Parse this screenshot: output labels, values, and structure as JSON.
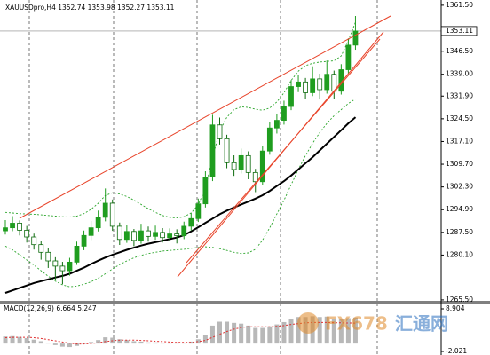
{
  "chart_data": [
    {
      "type": "candlestick",
      "title": "XAUUSDpro,H4  1352.74 1353.98 1352.27 1353.11",
      "open": [
        1288.0,
        1289.0,
        1290.5,
        1288.2,
        1286.0,
        1283.5,
        1281.0,
        1278.2,
        1276.5,
        1275.0,
        1277.8,
        1283.0,
        1286.5,
        1289.0,
        1292.4,
        1297.0,
        1289.5,
        1285.2,
        1287.8,
        1284.9,
        1288.0,
        1286.2,
        1287.5,
        1285.8,
        1287.0,
        1286.4,
        1289.5,
        1292.0,
        1296.8,
        1305.5,
        1322.5,
        1318.0,
        1310.2,
        1308.0,
        1312.5,
        1307.0,
        1304.0,
        1314.0,
        1321.5,
        1324.0,
        1328.5,
        1335.0,
        1336.5,
        1333.0,
        1337.5,
        1334.0,
        1339.0,
        1333.5,
        1340.5,
        1348.5
      ],
      "high": [
        1291.5,
        1292.8,
        1291.4,
        1289.6,
        1287.1,
        1284.8,
        1282.3,
        1279.4,
        1277.9,
        1279.2,
        1284.5,
        1288.1,
        1291.2,
        1294.6,
        1301.8,
        1298.2,
        1290.7,
        1289.9,
        1288.6,
        1290.3,
        1289.4,
        1289.7,
        1288.9,
        1288.8,
        1288.5,
        1291.0,
        1293.9,
        1298.5,
        1307.4,
        1325.8,
        1324.9,
        1319.3,
        1312.6,
        1314.8,
        1313.9,
        1308.2,
        1315.7,
        1323.4,
        1326.2,
        1330.4,
        1337.1,
        1338.9,
        1337.8,
        1341.6,
        1339.2,
        1343.5,
        1340.2,
        1342.3,
        1350.7,
        1358.0
      ],
      "low": [
        1286.8,
        1287.9,
        1286.5,
        1284.2,
        1281.9,
        1278.6,
        1275.9,
        1272.1,
        1270.6,
        1273.4,
        1276.9,
        1281.7,
        1285.0,
        1287.8,
        1291.1,
        1288.0,
        1283.4,
        1284.1,
        1283.0,
        1283.8,
        1284.5,
        1285.1,
        1284.2,
        1284.6,
        1283.9,
        1285.3,
        1288.1,
        1290.9,
        1295.6,
        1304.2,
        1316.1,
        1308.4,
        1305.9,
        1306.7,
        1304.8,
        1300.6,
        1302.9,
        1312.8,
        1319.7,
        1322.6,
        1327.3,
        1333.2,
        1331.1,
        1331.9,
        1330.8,
        1332.7,
        1331.0,
        1332.4,
        1339.1,
        1347.0
      ],
      "close": [
        1289.0,
        1290.5,
        1288.2,
        1286.0,
        1283.5,
        1281.0,
        1278.2,
        1276.5,
        1275.0,
        1277.8,
        1283.0,
        1286.5,
        1289.0,
        1292.4,
        1297.0,
        1289.5,
        1285.2,
        1287.8,
        1284.9,
        1288.0,
        1286.2,
        1287.5,
        1285.8,
        1287.0,
        1286.4,
        1289.5,
        1292.0,
        1296.8,
        1305.5,
        1322.5,
        1318.0,
        1310.2,
        1308.0,
        1312.5,
        1307.0,
        1304.0,
        1314.0,
        1321.5,
        1324.0,
        1328.5,
        1335.0,
        1336.5,
        1333.0,
        1337.5,
        1334.0,
        1339.0,
        1333.5,
        1340.5,
        1348.5,
        1353.11
      ],
      "ma": [
        1267.8,
        1268.6,
        1269.4,
        1270.2,
        1271.0,
        1271.6,
        1272.2,
        1272.8,
        1273.3,
        1274.0,
        1275.0,
        1276.0,
        1277.2,
        1278.3,
        1279.3,
        1280.2,
        1281.0,
        1281.8,
        1282.5,
        1283.2,
        1283.8,
        1284.3,
        1284.8,
        1285.3,
        1285.8,
        1286.6,
        1287.8,
        1289.2,
        1290.6,
        1292.0,
        1293.4,
        1294.6,
        1295.6,
        1296.6,
        1297.5,
        1298.5,
        1299.6,
        1301.0,
        1302.6,
        1304.2,
        1306.0,
        1308.0,
        1310.0,
        1312.0,
        1314.2,
        1316.4,
        1318.6,
        1320.8,
        1323.0,
        1325.0
      ],
      "bb_upper": [
        1294.0,
        1293.8,
        1293.6,
        1293.5,
        1293.4,
        1293.2,
        1293.0,
        1292.8,
        1292.6,
        1292.5,
        1292.8,
        1293.6,
        1295.0,
        1297.0,
        1299.5,
        1300.4,
        1300.0,
        1299.2,
        1298.0,
        1296.6,
        1295.2,
        1294.0,
        1293.0,
        1292.4,
        1292.2,
        1292.6,
        1293.8,
        1296.5,
        1302.0,
        1312.0,
        1320.5,
        1325.0,
        1327.5,
        1328.4,
        1328.2,
        1327.6,
        1327.3,
        1328.0,
        1330.0,
        1333.0,
        1337.0,
        1340.0,
        1341.8,
        1342.6,
        1343.0,
        1343.2,
        1343.4,
        1345.0,
        1350.0,
        1356.0
      ],
      "bb_lower": [
        1283.0,
        1281.8,
        1280.2,
        1278.5,
        1276.8,
        1275.0,
        1273.2,
        1271.6,
        1270.4,
        1269.8,
        1270.0,
        1270.6,
        1271.4,
        1272.6,
        1274.0,
        1275.6,
        1277.0,
        1278.2,
        1279.2,
        1280.0,
        1280.6,
        1281.0,
        1281.4,
        1281.6,
        1281.8,
        1282.0,
        1282.3,
        1282.6,
        1282.8,
        1282.6,
        1282.2,
        1281.6,
        1281.0,
        1280.6,
        1280.8,
        1282.0,
        1285.0,
        1289.0,
        1293.5,
        1298.0,
        1303.0,
        1308.0,
        1312.5,
        1316.5,
        1320.0,
        1323.0,
        1325.5,
        1327.5,
        1329.5,
        1331.0
      ],
      "ylim": [
        1264.9,
        1363.2
      ],
      "yticks": [
        {
          "value": 1361.5,
          "label": "1361.50"
        },
        {
          "value": 1346.5,
          "label": "1346.50"
        },
        {
          "value": 1339.0,
          "label": "1339.00"
        },
        {
          "value": 1331.9,
          "label": "1331.90"
        },
        {
          "value": 1324.5,
          "label": "1324.50"
        },
        {
          "value": 1317.1,
          "label": "1317.10"
        },
        {
          "value": 1309.7,
          "label": "1309.70"
        },
        {
          "value": 1302.3,
          "label": "1302.30"
        },
        {
          "value": 1294.9,
          "label": "1294.90"
        },
        {
          "value": 1287.5,
          "label": "1287.50"
        },
        {
          "value": 1280.1,
          "label": "1280.10"
        },
        {
          "value": 1265.5,
          "label": "1265.50"
        }
      ],
      "last_price": 1353.11,
      "up_color": "#1f9d1f",
      "down_color": "#0e6b0e",
      "ma_color": "#000000",
      "band_color": "#2aa52a"
    },
    {
      "type": "macd",
      "title": "MACD(12,26,9) 6.664 5.247",
      "values": [
        1.8,
        1.9,
        1.7,
        1.4,
        1.0,
        0.6,
        0.1,
        -0.4,
        -0.8,
        -0.9,
        -0.6,
        -0.1,
        0.4,
        0.9,
        1.6,
        1.5,
        1.1,
        0.9,
        0.6,
        0.5,
        0.3,
        0.3,
        0.2,
        0.2,
        0.1,
        0.2,
        0.5,
        1.1,
        2.3,
        4.6,
        5.6,
        5.6,
        5.3,
        5.1,
        4.6,
        4.0,
        4.0,
        4.4,
        4.9,
        5.5,
        6.3,
        6.8,
        6.8,
        7.0,
        6.8,
        6.9,
        6.4,
        6.4,
        6.5,
        6.664
      ],
      "signal": [
        1.5,
        1.6,
        1.6,
        1.6,
        1.5,
        1.3,
        1.0,
        0.7,
        0.4,
        0.1,
        -0.1,
        -0.1,
        0.0,
        0.2,
        0.5,
        0.7,
        0.9,
        0.9,
        0.9,
        0.8,
        0.7,
        0.6,
        0.5,
        0.4,
        0.3,
        0.3,
        0.3,
        0.5,
        0.8,
        1.6,
        2.4,
        3.1,
        3.7,
        4.1,
        4.3,
        4.3,
        4.3,
        4.3,
        4.4,
        4.6,
        4.9,
        5.1,
        5.3,
        5.4,
        5.4,
        5.4,
        5.35,
        5.3,
        5.27,
        5.247
      ],
      "ylim": [
        -2.021,
        8.904
      ],
      "yticks": [
        8.904,
        -2.021
      ],
      "color": "#b8b8b8",
      "signal_color": "#e03030"
    }
  ],
  "watermark": {
    "brand": "FX678",
    "name": "汇通网"
  }
}
